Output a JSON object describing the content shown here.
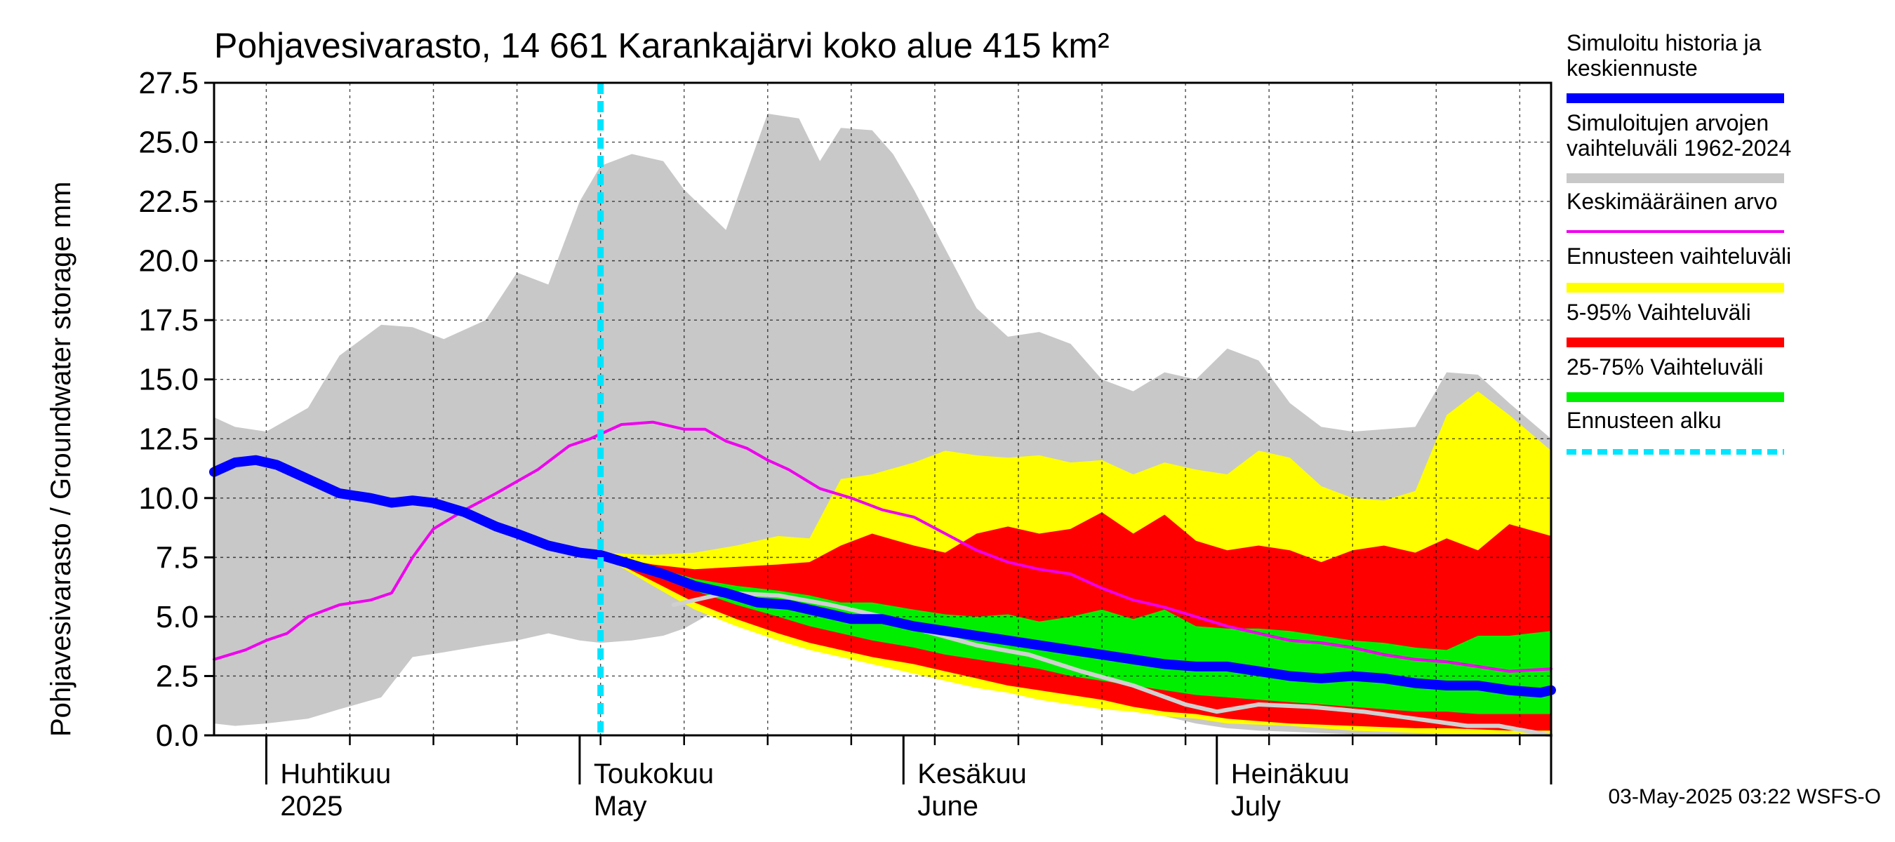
{
  "chart_data": {
    "type": "area",
    "title": "Pohjavesivarasto, 14 661 Karankajärvi koko alue 415 km²",
    "ylabel": "Pohjavesivarasto / Groundwater storage   mm",
    "ylim": [
      0,
      27.5
    ],
    "yticks": [
      "0.0",
      "2.5",
      "5.0",
      "7.5",
      "10.0",
      "12.5",
      "15.0",
      "17.5",
      "20.0",
      "22.5",
      "25.0",
      "27.5"
    ],
    "x_range": [
      "2025-03-27",
      "2025-08-02"
    ],
    "month_labels": [
      {
        "fi": "Huhtikuu",
        "en": "2025",
        "date": "2025-04-01"
      },
      {
        "fi": "Toukokuu",
        "en": "May",
        "date": "2025-05-01"
      },
      {
        "fi": "Kesäkuu",
        "en": "June",
        "date": "2025-06-01"
      },
      {
        "fi": "Heinäkuu",
        "en": "July",
        "date": "2025-07-01"
      }
    ],
    "grid": true,
    "forecast_start": "2025-05-03",
    "footer": "03-May-2025 03:22 WSFS-O",
    "legend": [
      {
        "label": "Simuloitu historia ja keskiennuste",
        "color": "#0000ff",
        "style": "thick"
      },
      {
        "label": "Simuloitujen arvojen vaihteluväli 1962-2024",
        "color": "#c8c8c8",
        "style": "thick"
      },
      {
        "label": "Keskimääräinen arvo",
        "color": "#ee00ee",
        "style": "thin"
      },
      {
        "label": "Ennusteen vaihteluväli",
        "color": "#ffff00",
        "style": "thick"
      },
      {
        "label": "5-95% Vaihteluväli",
        "color": "#ff0000",
        "style": "thick"
      },
      {
        "label": "25-75% Vaihteluväli",
        "color": "#00ee00",
        "style": "thick"
      },
      {
        "label": "Ennusteen alku",
        "color": "#00e5ff",
        "style": "dashed"
      }
    ],
    "series": {
      "hist_range": {
        "dates": [
          "2025-03-27",
          "2025-03-29",
          "2025-04-01",
          "2025-04-05",
          "2025-04-08",
          "2025-04-12",
          "2025-04-15",
          "2025-04-18",
          "2025-04-22",
          "2025-04-25",
          "2025-04-28",
          "2025-05-01",
          "2025-05-03",
          "2025-05-06",
          "2025-05-09",
          "2025-05-11",
          "2025-05-15",
          "2025-05-19",
          "2025-05-22",
          "2025-05-24",
          "2025-05-26",
          "2025-05-29",
          "2025-05-31",
          "2025-06-02",
          "2025-06-05",
          "2025-06-08",
          "2025-06-11",
          "2025-06-14",
          "2025-06-17",
          "2025-06-20",
          "2025-06-23",
          "2025-06-26",
          "2025-06-29",
          "2025-07-02",
          "2025-07-05",
          "2025-07-08",
          "2025-07-11",
          "2025-07-14",
          "2025-07-17",
          "2025-07-20",
          "2025-07-23",
          "2025-07-26",
          "2025-07-29",
          "2025-08-02"
        ],
        "upper": [
          13.4,
          13.0,
          12.8,
          13.8,
          16.0,
          17.3,
          17.2,
          16.7,
          17.5,
          19.5,
          19.0,
          22.5,
          24.0,
          24.5,
          24.2,
          23.0,
          21.3,
          26.2,
          26.0,
          24.2,
          25.6,
          25.5,
          24.5,
          23.0,
          20.5,
          18.0,
          16.8,
          17.0,
          16.5,
          15.0,
          14.5,
          15.3,
          15.0,
          16.3,
          15.8,
          14.0,
          13.0,
          12.8,
          12.9,
          13.0,
          15.3,
          15.2,
          14.0,
          12.5
        ],
        "lower": [
          0.5,
          0.4,
          0.5,
          0.7,
          1.1,
          1.6,
          3.3,
          3.5,
          3.8,
          4.0,
          4.3,
          4.0,
          3.9,
          4.0,
          4.2,
          4.5,
          5.5,
          5.0,
          4.6,
          4.3,
          4.2,
          3.9,
          3.6,
          3.3,
          3.0,
          2.6,
          2.3,
          2.0,
          1.7,
          1.3,
          1.0,
          0.8,
          0.5,
          0.3,
          0.2,
          0.15,
          0.1,
          0.05,
          0.05,
          0.05,
          0.05,
          0.05,
          0.05,
          0.05
        ]
      },
      "mean": {
        "dates": [
          "2025-03-27",
          "2025-03-30",
          "2025-04-01",
          "2025-04-03",
          "2025-04-05",
          "2025-04-08",
          "2025-04-11",
          "2025-04-13",
          "2025-04-15",
          "2025-04-17",
          "2025-04-20",
          "2025-04-23",
          "2025-04-25",
          "2025-04-27",
          "2025-04-30",
          "2025-05-02",
          "2025-05-03",
          "2025-05-05",
          "2025-05-08",
          "2025-05-11",
          "2025-05-13",
          "2025-05-15",
          "2025-05-17",
          "2025-05-19",
          "2025-05-21",
          "2025-05-24",
          "2025-05-27",
          "2025-05-30",
          "2025-06-02",
          "2025-06-05",
          "2025-06-08",
          "2025-06-11",
          "2025-06-14",
          "2025-06-17",
          "2025-06-20",
          "2025-06-23",
          "2025-06-26",
          "2025-06-29",
          "2025-07-02",
          "2025-07-05",
          "2025-07-08",
          "2025-07-11",
          "2025-07-14",
          "2025-07-17",
          "2025-07-20",
          "2025-07-23",
          "2025-07-26",
          "2025-07-29",
          "2025-08-02"
        ],
        "values": [
          3.2,
          3.6,
          4.0,
          4.3,
          5.0,
          5.5,
          5.7,
          6.0,
          7.5,
          8.7,
          9.5,
          10.2,
          10.7,
          11.2,
          12.2,
          12.5,
          12.7,
          13.1,
          13.2,
          12.9,
          12.9,
          12.4,
          12.1,
          11.6,
          11.2,
          10.4,
          10.0,
          9.5,
          9.2,
          8.5,
          7.8,
          7.3,
          7.0,
          6.8,
          6.2,
          5.7,
          5.4,
          5.0,
          4.6,
          4.3,
          4.0,
          3.9,
          3.7,
          3.4,
          3.2,
          3.1,
          2.9,
          2.7,
          2.8
        ]
      },
      "fc_range": {
        "dates": [
          "2025-05-03",
          "2025-05-08",
          "2025-05-12",
          "2025-05-16",
          "2025-05-20",
          "2025-05-23",
          "2025-05-26",
          "2025-05-29",
          "2025-06-02",
          "2025-06-05",
          "2025-06-08",
          "2025-06-11",
          "2025-06-14",
          "2025-06-17",
          "2025-06-20",
          "2025-06-23",
          "2025-06-26",
          "2025-06-29",
          "2025-07-02",
          "2025-07-05",
          "2025-07-08",
          "2025-07-11",
          "2025-07-14",
          "2025-07-17",
          "2025-07-20",
          "2025-07-23",
          "2025-07-26",
          "2025-07-29",
          "2025-08-02"
        ],
        "upper": [
          7.7,
          7.6,
          7.7,
          8.0,
          8.4,
          8.3,
          10.8,
          11.0,
          11.5,
          12.0,
          11.8,
          11.7,
          11.8,
          11.5,
          11.6,
          11.0,
          11.5,
          11.2,
          11.0,
          12.0,
          11.7,
          10.5,
          10.0,
          9.9,
          10.3,
          13.5,
          14.5,
          13.5,
          12.0
        ],
        "lower": [
          7.6,
          6.3,
          5.3,
          4.6,
          4.0,
          3.6,
          3.3,
          3.0,
          2.6,
          2.3,
          2.0,
          1.8,
          1.5,
          1.3,
          1.1,
          1.0,
          0.8,
          0.7,
          0.5,
          0.45,
          0.4,
          0.3,
          0.2,
          0.15,
          0.1,
          0.05,
          0.05,
          0.05,
          0.05
        ]
      },
      "p95": {
        "dates": [
          "2025-05-03",
          "2025-05-08",
          "2025-05-12",
          "2025-05-16",
          "2025-05-20",
          "2025-05-23",
          "2025-05-26",
          "2025-05-29",
          "2025-06-02",
          "2025-06-05",
          "2025-06-08",
          "2025-06-11",
          "2025-06-14",
          "2025-06-17",
          "2025-06-20",
          "2025-06-23",
          "2025-06-26",
          "2025-06-29",
          "2025-07-02",
          "2025-07-05",
          "2025-07-08",
          "2025-07-11",
          "2025-07-14",
          "2025-07-17",
          "2025-07-20",
          "2025-07-23",
          "2025-07-26",
          "2025-07-29",
          "2025-08-02"
        ],
        "upper": [
          7.6,
          7.2,
          7.0,
          7.1,
          7.2,
          7.3,
          8.0,
          8.5,
          8.0,
          7.7,
          8.5,
          8.8,
          8.5,
          8.7,
          9.4,
          8.5,
          9.3,
          8.2,
          7.8,
          8.0,
          7.8,
          7.3,
          7.8,
          8.0,
          7.7,
          8.3,
          7.8,
          8.9,
          8.4
        ],
        "lower": [
          7.6,
          6.5,
          5.6,
          4.9,
          4.3,
          3.9,
          3.6,
          3.3,
          3.0,
          2.7,
          2.4,
          2.1,
          1.9,
          1.7,
          1.5,
          1.2,
          1.0,
          0.9,
          0.7,
          0.6,
          0.5,
          0.45,
          0.4,
          0.35,
          0.3,
          0.3,
          0.25,
          0.2,
          0.2
        ]
      },
      "p75": {
        "dates": [
          "2025-05-03",
          "2025-05-08",
          "2025-05-12",
          "2025-05-16",
          "2025-05-20",
          "2025-05-23",
          "2025-05-26",
          "2025-05-29",
          "2025-06-02",
          "2025-06-05",
          "2025-06-08",
          "2025-06-11",
          "2025-06-14",
          "2025-06-17",
          "2025-06-20",
          "2025-06-23",
          "2025-06-26",
          "2025-06-29",
          "2025-07-02",
          "2025-07-05",
          "2025-07-08",
          "2025-07-11",
          "2025-07-14",
          "2025-07-17",
          "2025-07-20",
          "2025-07-23",
          "2025-07-26",
          "2025-07-29",
          "2025-08-02"
        ],
        "upper": [
          7.6,
          7.1,
          6.6,
          6.3,
          6.1,
          5.9,
          5.6,
          5.6,
          5.3,
          5.1,
          5.0,
          5.1,
          4.8,
          5.0,
          5.3,
          4.9,
          5.3,
          4.6,
          4.5,
          4.5,
          4.4,
          4.2,
          4.0,
          3.9,
          3.7,
          3.6,
          4.2,
          4.2,
          4.4
        ],
        "lower": [
          7.6,
          6.8,
          6.1,
          5.5,
          5.0,
          4.6,
          4.3,
          4.0,
          3.7,
          3.4,
          3.2,
          3.0,
          2.8,
          2.5,
          2.3,
          2.1,
          1.9,
          1.7,
          1.6,
          1.5,
          1.4,
          1.3,
          1.2,
          1.1,
          1.0,
          1.0,
          0.9,
          0.9,
          0.9
        ]
      },
      "median": {
        "dates": [
          "2025-03-27",
          "2025-03-29",
          "2025-03-31",
          "2025-04-02",
          "2025-04-05",
          "2025-04-08",
          "2025-04-11",
          "2025-04-13",
          "2025-04-15",
          "2025-04-17",
          "2025-04-20",
          "2025-04-23",
          "2025-04-25",
          "2025-04-28",
          "2025-05-01",
          "2025-05-03",
          "2025-05-06",
          "2025-05-09",
          "2025-05-12",
          "2025-05-15",
          "2025-05-18",
          "2025-05-21",
          "2025-05-24",
          "2025-05-27",
          "2025-05-30",
          "2025-06-02",
          "2025-06-05",
          "2025-06-08",
          "2025-06-11",
          "2025-06-14",
          "2025-06-17",
          "2025-06-20",
          "2025-06-23",
          "2025-06-26",
          "2025-06-29",
          "2025-07-02",
          "2025-07-05",
          "2025-07-08",
          "2025-07-11",
          "2025-07-14",
          "2025-07-17",
          "2025-07-20",
          "2025-07-23",
          "2025-07-26",
          "2025-07-29",
          "2025-08-01",
          "2025-08-02"
        ],
        "values": [
          11.1,
          11.5,
          11.6,
          11.4,
          10.8,
          10.2,
          10.0,
          9.8,
          9.9,
          9.8,
          9.4,
          8.8,
          8.5,
          8.0,
          7.7,
          7.6,
          7.2,
          6.8,
          6.3,
          6.0,
          5.6,
          5.5,
          5.2,
          4.9,
          4.9,
          4.6,
          4.4,
          4.2,
          4.0,
          3.8,
          3.6,
          3.4,
          3.2,
          3.0,
          2.9,
          2.9,
          2.7,
          2.5,
          2.4,
          2.5,
          2.4,
          2.2,
          2.1,
          2.1,
          1.9,
          1.8,
          1.9
        ]
      },
      "hist_year": {
        "dates": [
          "2025-05-10",
          "2025-05-15",
          "2025-05-20",
          "2025-05-25",
          "2025-05-30",
          "2025-06-03",
          "2025-06-08",
          "2025-06-13",
          "2025-06-18",
          "2025-06-23",
          "2025-06-28",
          "2025-07-01",
          "2025-07-05",
          "2025-07-10",
          "2025-07-15",
          "2025-07-20",
          "2025-07-25",
          "2025-07-28",
          "2025-08-02"
        ],
        "values": [
          5.5,
          6.0,
          5.9,
          5.5,
          5.0,
          4.4,
          3.8,
          3.4,
          2.7,
          2.1,
          1.3,
          1.0,
          1.3,
          1.2,
          1.0,
          0.7,
          0.4,
          0.4,
          0.0
        ]
      }
    }
  }
}
